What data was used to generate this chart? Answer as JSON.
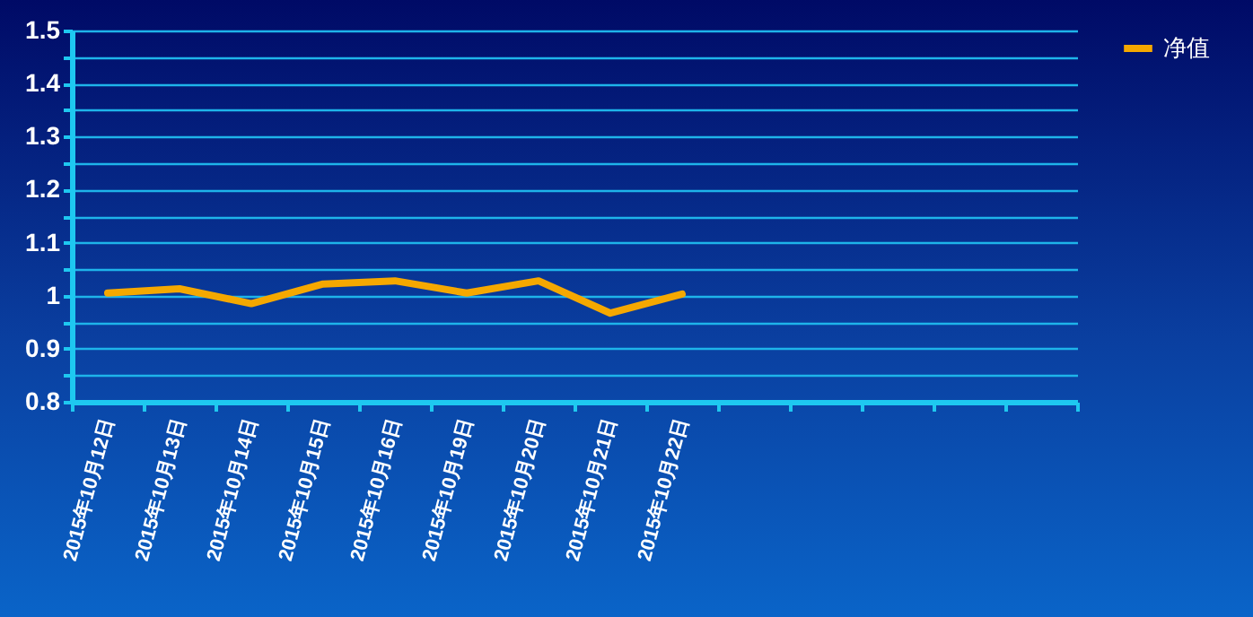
{
  "chart_data": {
    "type": "line",
    "categories": [
      "2015年10月12日",
      "2015年10月13日",
      "2015年10月14日",
      "2015年10月15日",
      "2015年10月16日",
      "2015年10月19日",
      "2015年10月20日",
      "2015年10月21日",
      "2015年10月22日",
      null,
      null,
      null,
      null,
      null
    ],
    "series": [
      {
        "name": "净值",
        "color": "#f5a800",
        "values": [
          1.005,
          1.013,
          0.985,
          1.022,
          1.028,
          1.005,
          1.028,
          0.967,
          1.003,
          null,
          null,
          null,
          null,
          null
        ]
      }
    ],
    "ylim": [
      0.8,
      1.5
    ],
    "yticks": [
      0.8,
      {
        "value": 0.85,
        "label": null
      },
      0.9,
      {
        "value": 0.95,
        "label": null
      },
      1,
      {
        "value": 1.05,
        "label": null
      },
      1.1,
      {
        "value": 1.15,
        "label": null
      },
      1.2,
      {
        "value": 1.25,
        "label": null
      },
      1.3,
      {
        "value": 1.35,
        "label": null
      },
      1.4,
      {
        "value": 1.45,
        "label": null
      },
      1.5
    ],
    "grid": true,
    "legend": "right"
  }
}
